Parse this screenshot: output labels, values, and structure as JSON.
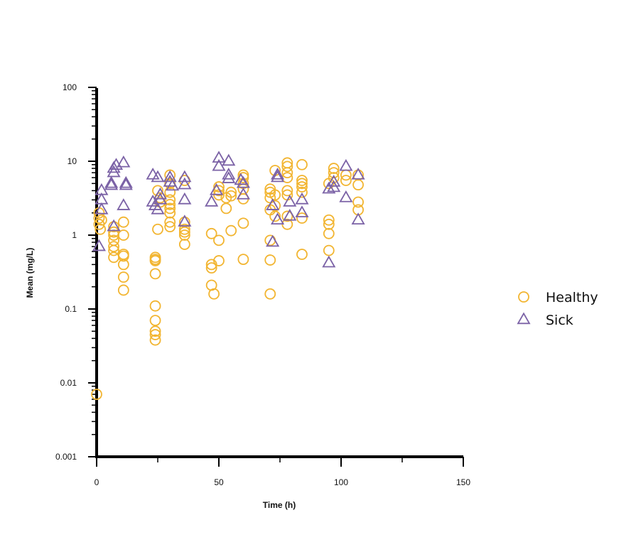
{
  "chart_data": {
    "type": "scatter",
    "xlabel": "Time (h)",
    "ylabel": "Mean (mg/L)",
    "xlim": [
      0,
      150
    ],
    "ylim": [
      0.001,
      100
    ],
    "yscale": "log",
    "xticks": [
      "0",
      "50",
      "100",
      "150"
    ],
    "yticks": [
      "0.001",
      "0.01",
      "0.1",
      "1",
      "10",
      "100"
    ],
    "legend_position": "right",
    "series": [
      {
        "name": "Healthy",
        "marker": "circle",
        "color": "#F2B531",
        "points": [
          [
            0,
            0.007
          ],
          [
            1,
            2.0
          ],
          [
            1,
            1.7
          ],
          [
            1,
            1.4
          ],
          [
            1.5,
            1.2
          ],
          [
            2,
            1.6
          ],
          [
            7,
            1.3
          ],
          [
            7,
            1.1
          ],
          [
            7,
            1.0
          ],
          [
            7,
            0.85
          ],
          [
            7,
            0.7
          ],
          [
            7,
            0.62
          ],
          [
            7,
            0.5
          ],
          [
            11,
            1.5
          ],
          [
            11,
            1.0
          ],
          [
            11,
            0.55
          ],
          [
            11,
            0.52
          ],
          [
            11,
            0.4
          ],
          [
            11,
            0.27
          ],
          [
            11,
            0.18
          ],
          [
            24,
            0.5
          ],
          [
            24,
            0.47
          ],
          [
            24,
            0.45
          ],
          [
            24,
            0.3
          ],
          [
            24,
            0.11
          ],
          [
            24,
            0.07
          ],
          [
            24,
            0.05
          ],
          [
            24,
            0.045
          ],
          [
            24,
            0.038
          ],
          [
            25,
            1.2
          ],
          [
            25,
            4.0
          ],
          [
            26,
            3.2
          ],
          [
            26,
            2.8
          ],
          [
            30,
            6.5
          ],
          [
            30,
            5.0
          ],
          [
            30,
            3.8
          ],
          [
            30,
            3.0
          ],
          [
            30,
            2.6
          ],
          [
            30,
            2.3
          ],
          [
            30,
            2.0
          ],
          [
            30,
            1.5
          ],
          [
            30,
            1.3
          ],
          [
            36,
            5.5
          ],
          [
            36,
            1.5
          ],
          [
            36,
            1.2
          ],
          [
            36,
            1.1
          ],
          [
            36,
            1.0
          ],
          [
            36,
            0.75
          ],
          [
            47,
            1.05
          ],
          [
            47,
            0.4
          ],
          [
            47,
            0.36
          ],
          [
            47,
            0.21
          ],
          [
            48,
            0.16
          ],
          [
            50,
            4.5
          ],
          [
            50,
            4.0
          ],
          [
            50,
            3.5
          ],
          [
            50,
            0.85
          ],
          [
            50,
            0.45
          ],
          [
            53,
            3.2
          ],
          [
            53,
            2.3
          ],
          [
            55,
            3.8
          ],
          [
            55,
            3.4
          ],
          [
            55,
            1.15
          ],
          [
            60,
            6.5
          ],
          [
            60,
            6.0
          ],
          [
            60,
            5.0
          ],
          [
            60,
            4.2
          ],
          [
            60,
            3.1
          ],
          [
            60,
            1.45
          ],
          [
            60,
            0.47
          ],
          [
            71,
            4.2
          ],
          [
            71,
            3.8
          ],
          [
            71,
            3.2
          ],
          [
            71,
            2.2
          ],
          [
            71,
            0.85
          ],
          [
            71,
            0.46
          ],
          [
            71,
            0.16
          ],
          [
            73,
            7.5
          ],
          [
            73,
            3.5
          ],
          [
            73,
            2.5
          ],
          [
            73,
            1.8
          ],
          [
            78,
            9.5
          ],
          [
            78,
            8.5
          ],
          [
            78,
            7.0
          ],
          [
            78,
            6.0
          ],
          [
            78,
            4.0
          ],
          [
            78,
            3.5
          ],
          [
            78,
            1.8
          ],
          [
            78,
            1.4
          ],
          [
            84,
            9.0
          ],
          [
            84,
            5.5
          ],
          [
            84,
            5.0
          ],
          [
            84,
            4.5
          ],
          [
            84,
            3.8
          ],
          [
            84,
            1.7
          ],
          [
            84,
            0.55
          ],
          [
            95,
            5.0
          ],
          [
            95,
            1.6
          ],
          [
            95,
            1.4
          ],
          [
            95,
            1.05
          ],
          [
            95,
            0.62
          ],
          [
            97,
            8.0
          ],
          [
            97,
            7.0
          ],
          [
            97,
            6.0
          ],
          [
            102,
            6.5
          ],
          [
            102,
            5.5
          ],
          [
            107,
            6.5
          ],
          [
            107,
            4.8
          ],
          [
            107,
            2.8
          ],
          [
            107,
            2.2
          ]
        ]
      },
      {
        "name": "Sick",
        "marker": "triangle",
        "color": "#7B62A6",
        "points": [
          [
            1,
            0.7
          ],
          [
            2,
            4.0
          ],
          [
            2,
            3.0
          ],
          [
            2,
            2.2
          ],
          [
            6,
            5.0
          ],
          [
            6,
            4.7
          ],
          [
            7,
            1.3
          ],
          [
            7,
            8.0
          ],
          [
            7,
            7.0
          ],
          [
            8,
            8.8
          ],
          [
            11,
            9.5
          ],
          [
            12,
            5.0
          ],
          [
            12,
            4.7
          ],
          [
            11,
            2.5
          ],
          [
            23,
            6.5
          ],
          [
            23,
            2.8
          ],
          [
            24,
            2.5
          ],
          [
            25,
            6.0
          ],
          [
            25,
            2.2
          ],
          [
            26,
            3.5
          ],
          [
            26,
            3.0
          ],
          [
            30,
            6.0
          ],
          [
            30,
            5.2
          ],
          [
            31,
            4.6
          ],
          [
            36,
            6.0
          ],
          [
            36,
            4.8
          ],
          [
            36,
            3.0
          ],
          [
            36,
            1.5
          ],
          [
            47,
            2.8
          ],
          [
            49,
            4.0
          ],
          [
            50,
            11.0
          ],
          [
            50,
            8.5
          ],
          [
            54,
            10.0
          ],
          [
            54,
            6.5
          ],
          [
            54,
            5.8
          ],
          [
            59,
            5.5
          ],
          [
            60,
            5.0
          ],
          [
            60,
            3.5
          ],
          [
            72,
            2.5
          ],
          [
            72,
            0.8
          ],
          [
            74,
            6.5
          ],
          [
            74,
            6.0
          ],
          [
            74,
            1.6
          ],
          [
            79,
            2.8
          ],
          [
            79,
            1.8
          ],
          [
            84,
            3.0
          ],
          [
            84,
            2.0
          ],
          [
            95,
            4.2
          ],
          [
            95,
            0.42
          ],
          [
            97,
            5.2
          ],
          [
            97,
            4.4
          ],
          [
            102,
            8.5
          ],
          [
            102,
            3.2
          ],
          [
            107,
            6.5
          ],
          [
            107,
            1.6
          ]
        ]
      }
    ]
  }
}
